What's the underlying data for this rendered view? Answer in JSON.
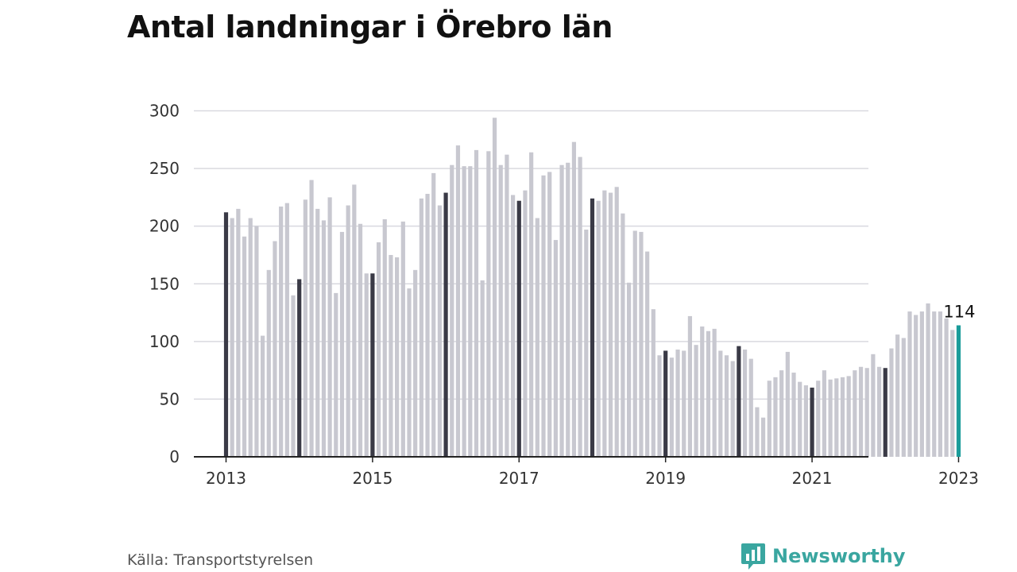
{
  "title": "Antal landningar i Örebro län",
  "source": "Källa: Transportstyrelsen",
  "brand": {
    "name": "Newsworthy",
    "icon": "newsworthy-logo-icon",
    "color": "#3aa6a0"
  },
  "chart_data": {
    "type": "bar",
    "title": "Antal landningar i Örebro län",
    "xlabel": "",
    "ylabel": "",
    "ylim": [
      0,
      300
    ],
    "yticks": [
      0,
      50,
      100,
      150,
      200,
      250,
      300
    ],
    "xtick_labels": [
      "2013",
      "2015",
      "2017",
      "2019",
      "2021",
      "2023"
    ],
    "grid": true,
    "x_start": "2013-01",
    "frequency": "monthly",
    "colors": {
      "bar": "#c8c8d0",
      "january_bar": "#3a3a46",
      "highlight_bar": "#1a9c9a",
      "grid": "#d9d9df",
      "axis": "#222222"
    },
    "highlight": {
      "x": "2023-01",
      "value": 114,
      "label": "114"
    },
    "series": [
      {
        "values": [
          212,
          207,
          215,
          191,
          207,
          200,
          105,
          162,
          187,
          217,
          220,
          140,
          154,
          223,
          240,
          215,
          205,
          225,
          142,
          195,
          218,
          236,
          202,
          159,
          159,
          186,
          206,
          175,
          173,
          204,
          146,
          162,
          224,
          228,
          246,
          218,
          229,
          253,
          270,
          252,
          252,
          266,
          153,
          265,
          294,
          253,
          262,
          227,
          222,
          231,
          264,
          207,
          244,
          247,
          188,
          253,
          255,
          273,
          260,
          197,
          224,
          222,
          231,
          229,
          234,
          211,
          151,
          196,
          195,
          178,
          128,
          88,
          92,
          86,
          93,
          92,
          122,
          97,
          113,
          109,
          111,
          92,
          88,
          83,
          96,
          93,
          85,
          43,
          34,
          66,
          69,
          75,
          91,
          73,
          65,
          62,
          60,
          66,
          75,
          67,
          68,
          69,
          70,
          75,
          78,
          77,
          89,
          78,
          77,
          94,
          106,
          103,
          126,
          123,
          126,
          133,
          126,
          126,
          120,
          110,
          114
        ]
      }
    ]
  }
}
